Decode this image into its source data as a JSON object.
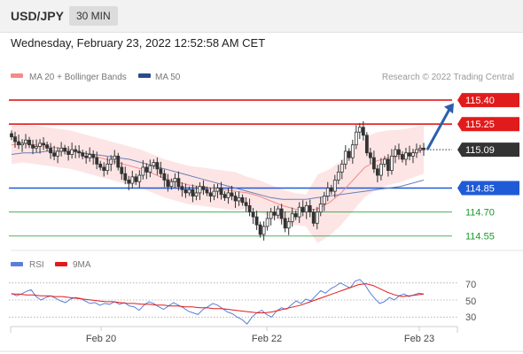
{
  "header": {
    "symbol": "USD/JPY",
    "timeframe": "30 MIN",
    "datetime": "Wednesday, February 23, 2022 12:52:58 AM CET"
  },
  "colors": {
    "red": "#e11b1b",
    "blue": "#1f5bd6",
    "green": "#1a9a2a",
    "rsi_blue": "#5b7fd8",
    "bollinger_fill": "#fde2e2",
    "bollinger_line": "#f28b8b",
    "ma50_line": "#6a7fb8",
    "arrow": "#2b5fad",
    "current_label_bg": "#333333"
  },
  "chart_data": [
    {
      "type": "candlestick",
      "legend": [
        {
          "name": "MA 20 + Bollinger Bands",
          "color": "#f28b8b"
        },
        {
          "name": "MA 50",
          "color": "#2b4c8c"
        }
      ],
      "credit": "Research © 2022 Trading Central",
      "y_range": [
        114.46,
        115.5
      ],
      "levels": [
        {
          "value": 115.4,
          "label": "115.40",
          "color": "#e11b1b",
          "style": "resistance"
        },
        {
          "value": 115.25,
          "label": "115.25",
          "color": "#e11b1b",
          "style": "resistance"
        },
        {
          "value": 115.09,
          "label": "115.09",
          "color": "#333333",
          "style": "current"
        },
        {
          "value": 114.85,
          "label": "114.85",
          "color": "#1f5bd6",
          "style": "pivot"
        },
        {
          "value": 114.7,
          "label": "114.70",
          "color": "#1a9a2a",
          "style": "support"
        },
        {
          "value": 114.55,
          "label": "114.55",
          "color": "#1a9a2a",
          "style": "support"
        }
      ],
      "arrow": {
        "from_value": 115.09,
        "to_value": 115.37
      },
      "candles_close": [
        115.17,
        115.14,
        115.12,
        115.13,
        115.15,
        115.12,
        115.1,
        115.11,
        115.13,
        115.12,
        115.1,
        115.07,
        115.05,
        115.08,
        115.1,
        115.08,
        115.06,
        115.09,
        115.08,
        115.07,
        115.05,
        115.04,
        115.06,
        115.04,
        115.0,
        114.98,
        114.96,
        115.0,
        115.03,
        115.05,
        114.98,
        114.94,
        114.9,
        114.88,
        114.92,
        114.89,
        114.93,
        114.98,
        114.95,
        114.99,
        115.01,
        114.97,
        114.94,
        114.9,
        114.86,
        114.89,
        114.91,
        114.86,
        114.84,
        114.82,
        114.84,
        114.8,
        114.82,
        114.86,
        114.84,
        114.82,
        114.8,
        114.83,
        114.85,
        114.81,
        114.79,
        114.82,
        114.8,
        114.77,
        114.79,
        114.76,
        114.74,
        114.7,
        114.67,
        114.62,
        114.56,
        114.61,
        114.66,
        114.7,
        114.68,
        114.72,
        114.66,
        114.6,
        114.64,
        114.69,
        114.67,
        114.73,
        114.7,
        114.74,
        114.7,
        114.63,
        114.7,
        114.75,
        114.8,
        114.85,
        114.83,
        114.9,
        114.95,
        115.0,
        115.08,
        115.04,
        115.12,
        115.2,
        115.23,
        115.18,
        115.07,
        115.04,
        114.97,
        114.93,
        115.0,
        115.03,
        114.96,
        115.05,
        115.09,
        115.06,
        115.03,
        115.07,
        115.05,
        115.07,
        115.09,
        115.1,
        115.09
      ],
      "series": [
        {
          "name": "MA 20",
          "values": [
            115.12,
            115.13,
            115.12,
            115.11,
            115.1,
            115.09,
            115.07,
            115.05,
            115.03,
            115.01,
            114.99,
            114.97,
            114.94,
            114.91,
            114.89,
            114.87,
            114.86,
            114.85,
            114.84,
            114.83,
            114.82,
            114.8,
            114.77,
            114.74,
            114.72,
            114.71,
            114.72,
            114.76,
            114.82,
            114.9,
            114.98,
            115.02,
            115.04,
            115.05,
            115.07,
            115.09
          ]
        },
        {
          "name": "MA 50",
          "values": [
            115.06,
            115.07,
            115.07,
            115.08,
            115.08,
            115.08,
            115.07,
            115.06,
            115.05,
            115.04,
            115.03,
            115.01,
            114.99,
            114.97,
            114.95,
            114.93,
            114.91,
            114.89,
            114.87,
            114.85,
            114.83,
            114.81,
            114.79,
            114.78,
            114.78,
            114.78,
            114.79,
            114.8,
            114.81,
            114.82,
            114.83,
            114.84,
            114.85,
            114.86,
            114.88,
            114.9
          ]
        }
      ],
      "x_ticks": [
        "Feb 20",
        "Feb 22",
        "Feb 23"
      ]
    },
    {
      "type": "line",
      "legend": [
        {
          "name": "RSI",
          "color": "#5b7fd8"
        },
        {
          "name": "9MA",
          "color": "#e11b1b"
        }
      ],
      "y_ticks": [
        "70",
        "50",
        "30"
      ],
      "y_range": [
        20,
        80
      ],
      "series": [
        {
          "name": "RSI",
          "values": [
            58,
            55,
            57,
            60,
            62,
            54,
            50,
            53,
            55,
            52,
            49,
            47,
            51,
            53,
            52,
            49,
            46,
            47,
            44,
            46,
            45,
            48,
            45,
            47,
            43,
            42,
            38,
            44,
            48,
            46,
            42,
            39,
            43,
            47,
            44,
            41,
            37,
            35,
            33,
            39,
            42,
            46,
            44,
            40,
            36,
            34,
            30,
            27,
            22,
            30,
            35,
            38,
            33,
            30,
            37,
            41,
            39,
            44,
            49,
            46,
            51,
            49,
            55,
            61,
            58,
            63,
            66,
            70,
            67,
            64,
            72,
            74,
            68,
            59,
            52,
            46,
            48,
            53,
            50,
            55,
            57,
            54,
            56,
            58,
            57
          ]
        },
        {
          "name": "9MA",
          "values": [
            57,
            57,
            56,
            56,
            55,
            55,
            54,
            54,
            53,
            52,
            51,
            50,
            49,
            48,
            48,
            47,
            46,
            46,
            45,
            45,
            44,
            44,
            43,
            43,
            42,
            42,
            41,
            41,
            40,
            40,
            39,
            38,
            37,
            36,
            35,
            35,
            36,
            38,
            40,
            42,
            44,
            47,
            50,
            53,
            56,
            59,
            62,
            65,
            68,
            69,
            67,
            63,
            59,
            56,
            54,
            55,
            56,
            57
          ]
        }
      ],
      "x_ticks": [
        "Feb 20",
        "Feb 22",
        "Feb 23"
      ]
    }
  ]
}
